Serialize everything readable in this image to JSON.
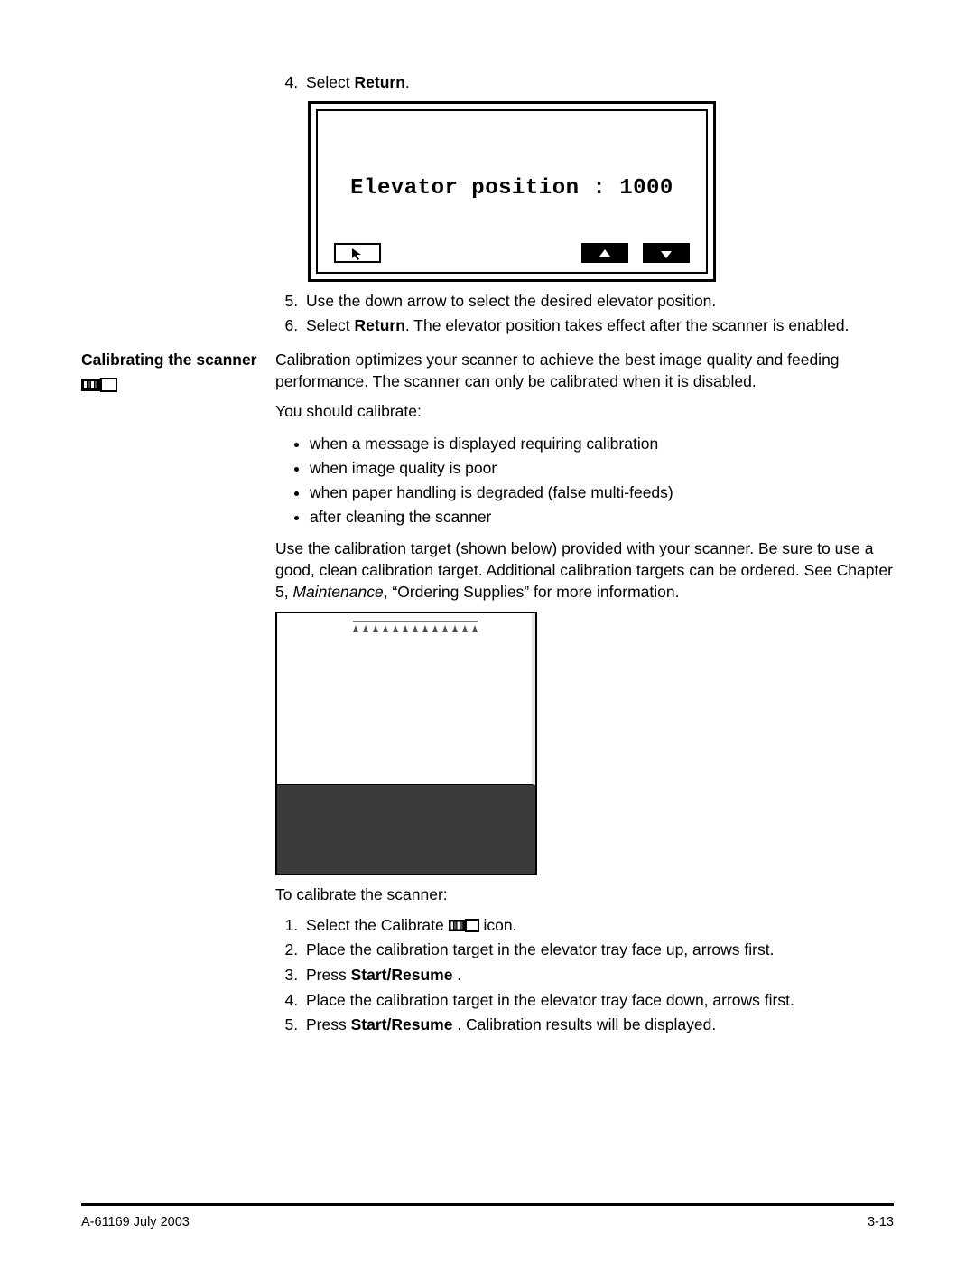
{
  "steps_top": {
    "s4_prefix": "Select ",
    "s4_bold": "Return",
    "s4_suffix": ".",
    "s5": "Use the down arrow to select the desired elevator position.",
    "s6_prefix": "Select ",
    "s6_bold": "Return",
    "s6_suffix": ". The elevator position takes effect after the scanner is enabled."
  },
  "lcd": {
    "text": "Elevator position : 1000",
    "buttons": {
      "back": "back-cursor",
      "up": "up-arrow",
      "down": "down-arrow"
    },
    "colors": {
      "border": "#000000",
      "bg": "#ffffff",
      "btn_dark": "#000000",
      "arrow_fill": "#ffffff"
    }
  },
  "section": {
    "heading": "Calibrating the scanner",
    "p1": "Calibration optimizes your scanner to achieve the best image quality and feeding performance. The scanner can only be calibrated when it is disabled.",
    "p2": "You should calibrate:",
    "bullets": [
      "when a message is displayed requiring calibration",
      "when image quality is poor",
      "when paper handling is degraded (false multi-feeds)",
      "after cleaning the scanner"
    ],
    "p3_a": "Use the calibration target (shown below) provided with your scanner. Be sure to use a good, clean calibration target.  Additional calibration targets can be ordered. See Chapter 5, ",
    "p3_italic": "Maintenance",
    "p3_b": ", “Ordering Supplies” for more information.",
    "p4": "To calibrate the scanner:",
    "cal_steps": {
      "s1_a": "Select the Calibrate ",
      "s1_b": " icon.",
      "s2": "Place the calibration target in the elevator tray face up, arrows first.",
      "s3_a": "Press ",
      "s3_bold": "Start/Resume",
      "s3_b": " .",
      "s4": "Place the calibration target in the elevator tray face down, arrows first.",
      "s5_a": "Press ",
      "s5_bold": "Start/Resume",
      "s5_b": " .  Calibration results will be displayed."
    }
  },
  "target_fig": {
    "top_bg": "#ffffff",
    "bottom_bg": "#3b3b3b",
    "border": "#000000",
    "arrow_count": 13
  },
  "footer": {
    "left": "A-61169 July 2003",
    "right": "3-13"
  },
  "icons": {
    "calibrate": {
      "bg": "#000000",
      "frame": "#000000",
      "fg": "#ffffff"
    }
  }
}
